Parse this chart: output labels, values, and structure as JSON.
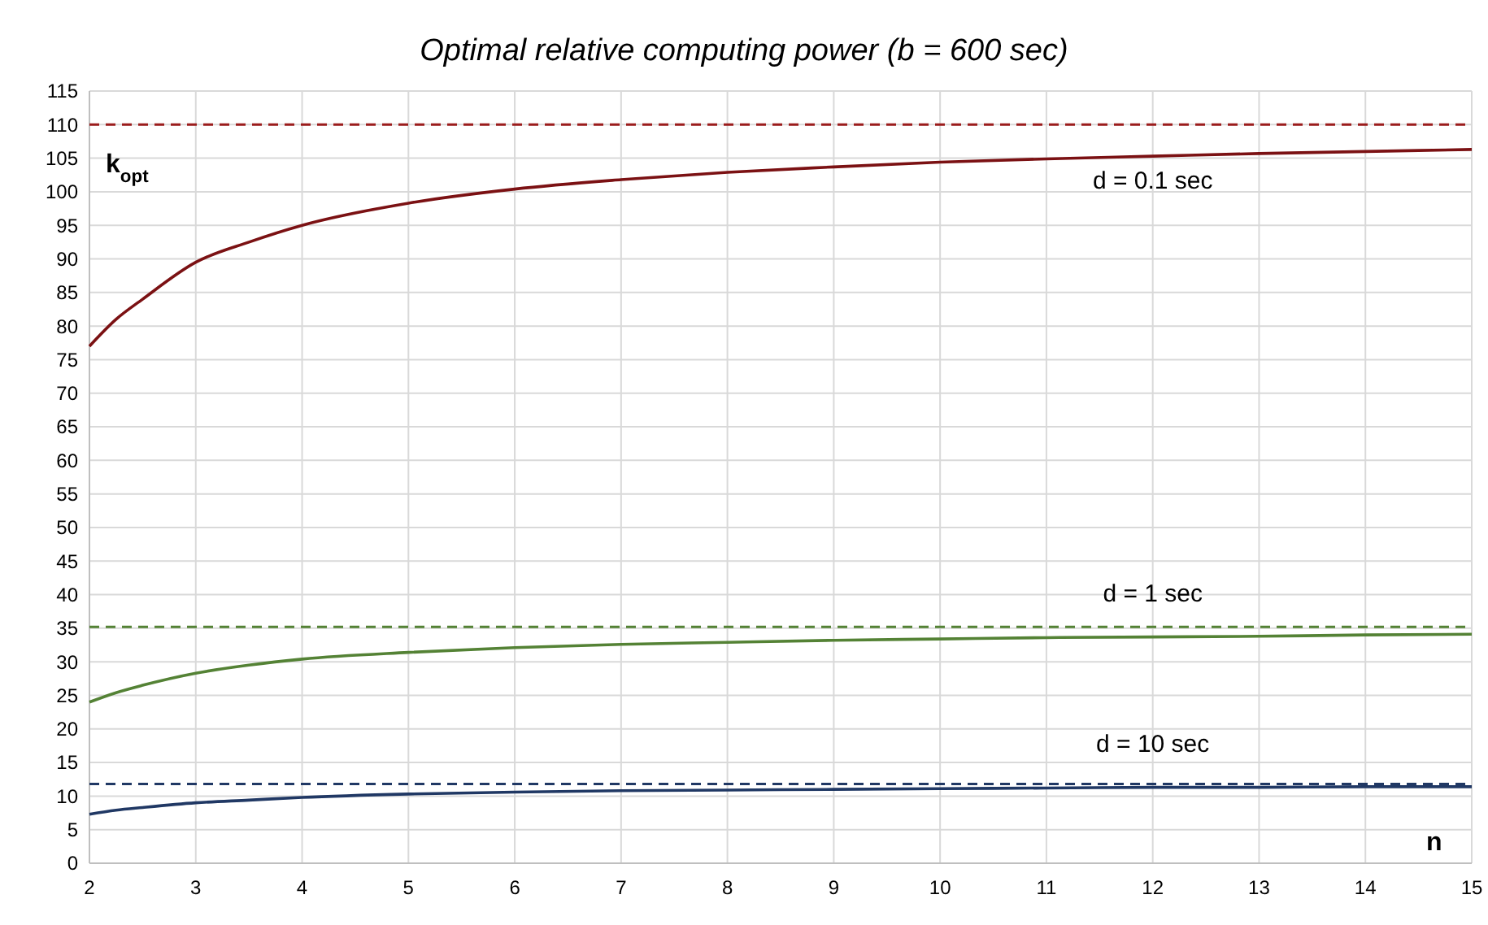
{
  "chart_data": {
    "type": "line",
    "title": "Optimal relative computing power (b = 600 sec)",
    "xlabel": "n",
    "ylabel": "k$_{opt}$",
    "xlim": [
      2,
      15
    ],
    "xticks": [
      2,
      3,
      4,
      5,
      6,
      7,
      8,
      9,
      10,
      11,
      12,
      13,
      14,
      15
    ],
    "ylim": [
      0,
      115
    ],
    "yticks": [
      0,
      5,
      10,
      15,
      20,
      25,
      30,
      35,
      40,
      45,
      50,
      55,
      60,
      65,
      70,
      75,
      80,
      85,
      90,
      95,
      100,
      105,
      110,
      115
    ],
    "grid": true,
    "legend": false,
    "marker": "none",
    "line_style": "solid",
    "x": [
      2,
      2.25,
      2.5,
      3,
      3.5,
      4,
      5,
      6,
      7,
      8,
      9,
      10,
      11,
      12,
      13,
      14,
      15
    ],
    "series": [
      {
        "name": "d = 0.1 sec",
        "color": "#7b1113",
        "values": [
          77,
          81,
          84,
          89.5,
          92.5,
          95,
          98.3,
          100.4,
          101.8,
          102.9,
          103.7,
          104.4,
          104.9,
          105.3,
          105.7,
          106,
          106.3
        ]
      },
      {
        "name": "d = 1 sec",
        "color": "#548235",
        "values": [
          24,
          25.4,
          26.5,
          28.3,
          29.5,
          30.4,
          31.4,
          32.1,
          32.6,
          32.9,
          33.2,
          33.4,
          33.6,
          33.7,
          33.8,
          34,
          34.1
        ]
      },
      {
        "name": "d = 10 sec",
        "color": "#203864",
        "values": [
          7.3,
          7.9,
          8.3,
          9,
          9.4,
          9.8,
          10.3,
          10.6,
          10.8,
          10.9,
          11,
          11.1,
          11.2,
          11.3,
          11.3,
          11.4,
          11.4
        ]
      }
    ],
    "ref_lines": [
      {
        "axis": "y",
        "value": 110,
        "color": "#9b1c1c",
        "line_style": "dashed"
      },
      {
        "axis": "y",
        "value": 35.2,
        "color": "#548235",
        "line_style": "dashed"
      },
      {
        "axis": "y",
        "value": 11.8,
        "color": "#203864",
        "line_style": "dashed"
      }
    ]
  }
}
